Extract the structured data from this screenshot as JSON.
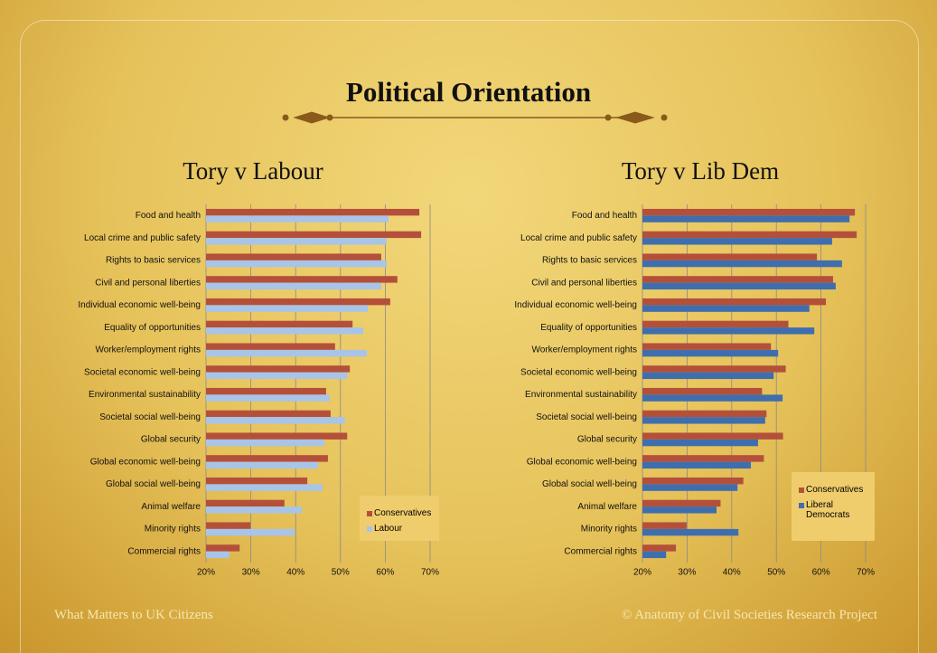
{
  "slide": {
    "title": "Political Orientation",
    "footer_left": "What Matters to UK Citizens",
    "footer_right": "© Anatomy of Civil Societies Research Project"
  },
  "chart_data": [
    {
      "type": "hbar",
      "title": "Tory v Labour",
      "categories": [
        "Food and health",
        "Local crime and public safety",
        "Rights to basic services",
        "Civil and personal liberties",
        "Individual economic well-being",
        "Equality of opportunities",
        "Worker/employment rights",
        "Societal economic well-being",
        "Environmental sustainability",
        "Societal social well-being",
        "Global security",
        "Global economic well-being",
        "Global social well-being",
        "Animal welfare",
        "Minority rights",
        "Commercial rights"
      ],
      "series": [
        {
          "name": "Conservatives",
          "color": "#b4503a",
          "values": [
            67.6,
            68,
            59.1,
            62.7,
            61.1,
            52.7,
            48.8,
            52.1,
            46.8,
            47.8,
            51.5,
            47.2,
            42.6,
            37.5,
            29.9,
            27.5
          ]
        },
        {
          "name": "Labour",
          "color": "#a8c4e8",
          "values": [
            60.7,
            60.3,
            60.3,
            59.1,
            56.1,
            55.1,
            55.9,
            51.5,
            47.6,
            51,
            46.4,
            45,
            46,
            41.4,
            39.8,
            25.2
          ]
        }
      ],
      "xlim": [
        20,
        70
      ],
      "xticks": [
        {
          "value": 20,
          "label": "20%"
        },
        {
          "value": 30,
          "label": "30%"
        },
        {
          "value": 40,
          "label": "40%"
        },
        {
          "value": 50,
          "label": "50%"
        },
        {
          "value": 60,
          "label": "60%"
        },
        {
          "value": 70,
          "label": "70%"
        }
      ],
      "grid": true,
      "legend": "lower right"
    },
    {
      "type": "hbar",
      "title": "Tory v Lib Dem",
      "categories": [
        "Food and health",
        "Local crime and public safety",
        "Rights to basic services",
        "Civil and personal liberties",
        "Individual economic well-being",
        "Equality of opportunities",
        "Worker/employment rights",
        "Societal economic well-being",
        "Environmental sustainability",
        "Societal social well-being",
        "Global security",
        "Global economic well-being",
        "Global social well-being",
        "Animal welfare",
        "Minority rights",
        "Commercial rights"
      ],
      "series": [
        {
          "name": "Conservatives",
          "color": "#b4503a",
          "values": [
            67.6,
            68,
            59.1,
            62.7,
            61.1,
            52.7,
            48.8,
            52.1,
            46.8,
            47.8,
            51.5,
            47.2,
            42.6,
            37.5,
            29.9,
            27.5
          ]
        },
        {
          "name": "Liberal Democrats",
          "color": "#3f6eae",
          "values": [
            66.4,
            62.5,
            64.7,
            63.3,
            57.4,
            58.5,
            50.4,
            49.4,
            51.4,
            47.5,
            45.9,
            44.3,
            41.3,
            36.6,
            41.5,
            25.3
          ]
        }
      ],
      "xlim": [
        20,
        70
      ],
      "xticks": [
        {
          "value": 20,
          "label": "20%"
        },
        {
          "value": 30,
          "label": "30%"
        },
        {
          "value": 40,
          "label": "40%"
        },
        {
          "value": 50,
          "label": "50%"
        },
        {
          "value": 60,
          "label": "60%"
        },
        {
          "value": 70,
          "label": "70%"
        }
      ],
      "grid": true,
      "legend": "lower right"
    }
  ]
}
